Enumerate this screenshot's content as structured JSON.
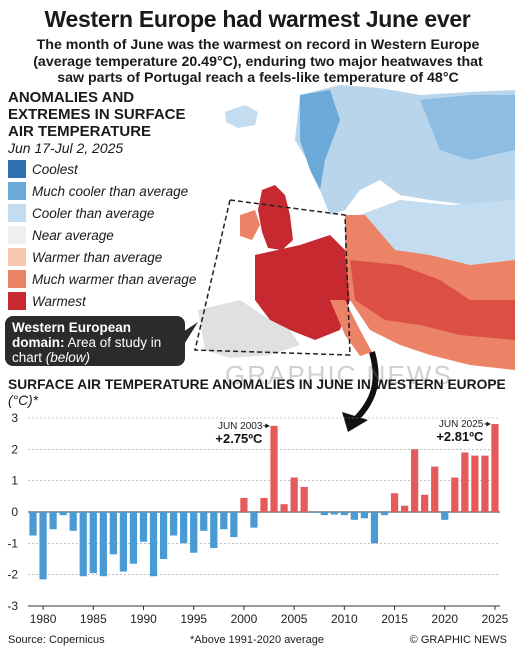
{
  "header": {
    "title": "Western Europe had warmest June ever",
    "subtitle": "The month of June was the warmest on record in Western Europe (average temperature 20.49°C), enduring two major heatwaves that saw parts of Portugal reach a feels-like temperature of 48°C"
  },
  "legend": {
    "title": "ANOMALIES AND EXTREMES IN SURFACE AIR TEMPERATURE",
    "date": "Jun 17-Jul 2, 2025",
    "items": [
      {
        "label": "Coolest",
        "color": "#2f6fb0"
      },
      {
        "label": "Much cooler than average",
        "color": "#6aa9d8"
      },
      {
        "label": "Cooler than average",
        "color": "#c3dcef"
      },
      {
        "label": "Near average",
        "color": "#efefef"
      },
      {
        "label": "Warmer than average",
        "color": "#f6c6ad"
      },
      {
        "label": "Much warmer than average",
        "color": "#ec8366"
      },
      {
        "label": "Warmest",
        "color": "#c62a30"
      }
    ]
  },
  "domain_box": {
    "bold": "Western European domain:",
    "text": "Area of study in chart",
    "italic": "(below)"
  },
  "watermark": "GRAPHIC NEWS",
  "chart_title": {
    "text": "SURFACE AIR TEMPERATURE ANOMALIES IN JUNE IN WESTERN EUROPE",
    "unit": "(°C)*"
  },
  "colors": {
    "negative": "#4a9ad3",
    "positive": "#e55a5a",
    "axis": "#333333",
    "grid": "#999999"
  },
  "chart_data": {
    "type": "bar",
    "x": [
      1979,
      1980,
      1981,
      1982,
      1983,
      1984,
      1985,
      1986,
      1987,
      1988,
      1989,
      1990,
      1991,
      1992,
      1993,
      1994,
      1995,
      1996,
      1997,
      1998,
      1999,
      2000,
      2001,
      2002,
      2003,
      2004,
      2005,
      2006,
      2007,
      2008,
      2009,
      2010,
      2011,
      2012,
      2013,
      2014,
      2015,
      2016,
      2017,
      2018,
      2019,
      2020,
      2021,
      2022,
      2023,
      2024,
      2025
    ],
    "values": [
      -0.75,
      -2.15,
      -0.55,
      -0.1,
      -0.6,
      -2.05,
      -1.95,
      -2.05,
      -1.35,
      -1.9,
      -1.65,
      -0.95,
      -2.05,
      -1.5,
      -0.75,
      -1.0,
      -1.3,
      -0.6,
      -1.15,
      -0.55,
      -0.8,
      0.45,
      -0.5,
      0.45,
      2.75,
      0.25,
      1.1,
      0.8,
      -0.03,
      -0.1,
      -0.08,
      -0.1,
      -0.25,
      -0.2,
      -1.0,
      -0.1,
      0.6,
      0.2,
      2.0,
      0.55,
      1.45,
      -0.25,
      1.1,
      1.9,
      1.8,
      1.8,
      2.81
    ],
    "ylim": [
      -3,
      3
    ],
    "yticks": [
      -3,
      -2,
      -1,
      0,
      1,
      2,
      3
    ],
    "xticks": [
      1980,
      1985,
      1990,
      1995,
      2000,
      2005,
      2010,
      2015,
      2020,
      2025
    ],
    "annotations": [
      {
        "year": 2003,
        "label": "JUN 2003",
        "value": "+2.75ºC"
      },
      {
        "year": 2025,
        "label": "JUN 2025",
        "value": "+2.81ºC"
      }
    ]
  },
  "footer": {
    "source": "Source: Copernicus",
    "footnote": "*Above 1991-2020 average",
    "credit": "© GRAPHIC NEWS"
  }
}
